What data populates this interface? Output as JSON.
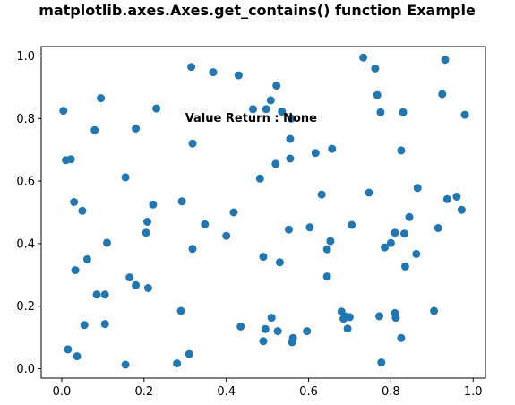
{
  "chart_data": {
    "type": "scatter",
    "title": "matplotlib.axes.Axes.get_contains() function Example",
    "xlabel": "",
    "ylabel": "",
    "xlim": [
      -0.05,
      1.03
    ],
    "ylim": [
      -0.03,
      1.03
    ],
    "grid": false,
    "legend": "none",
    "marker_color": "#1f77b4",
    "xticks": [
      0.0,
      0.2,
      0.4,
      0.6,
      0.8,
      1.0
    ],
    "xtick_labels": [
      "0.0",
      "0.2",
      "0.4",
      "0.6",
      "0.8",
      "1.0"
    ],
    "yticks": [
      0.0,
      0.2,
      0.4,
      0.6,
      0.8,
      1.0
    ],
    "ytick_labels": [
      "0.0",
      "0.2",
      "0.4",
      "0.6",
      "0.8",
      "1.0"
    ],
    "annotation": {
      "text": "Value Return : None",
      "x": 0.3,
      "y": 0.79
    },
    "points": [
      [
        0.004,
        0.825
      ],
      [
        0.01,
        0.667
      ],
      [
        0.022,
        0.67
      ],
      [
        0.015,
        0.062
      ],
      [
        0.03,
        0.533
      ],
      [
        0.033,
        0.315
      ],
      [
        0.037,
        0.04
      ],
      [
        0.05,
        0.505
      ],
      [
        0.055,
        0.14
      ],
      [
        0.062,
        0.35
      ],
      [
        0.08,
        0.763
      ],
      [
        0.085,
        0.237
      ],
      [
        0.095,
        0.865
      ],
      [
        0.105,
        0.237
      ],
      [
        0.105,
        0.143
      ],
      [
        0.11,
        0.403
      ],
      [
        0.155,
        0.612
      ],
      [
        0.155,
        0.013
      ],
      [
        0.165,
        0.292
      ],
      [
        0.18,
        0.768
      ],
      [
        0.18,
        0.267
      ],
      [
        0.205,
        0.435
      ],
      [
        0.208,
        0.47
      ],
      [
        0.21,
        0.258
      ],
      [
        0.222,
        0.525
      ],
      [
        0.23,
        0.832
      ],
      [
        0.28,
        0.017
      ],
      [
        0.29,
        0.185
      ],
      [
        0.292,
        0.535
      ],
      [
        0.31,
        0.047
      ],
      [
        0.315,
        0.965
      ],
      [
        0.318,
        0.72
      ],
      [
        0.318,
        0.383
      ],
      [
        0.348,
        0.462
      ],
      [
        0.368,
        0.948
      ],
      [
        0.4,
        0.425
      ],
      [
        0.418,
        0.5
      ],
      [
        0.43,
        0.938
      ],
      [
        0.435,
        0.135
      ],
      [
        0.465,
        0.83
      ],
      [
        0.482,
        0.608
      ],
      [
        0.49,
        0.358
      ],
      [
        0.49,
        0.088
      ],
      [
        0.495,
        0.127
      ],
      [
        0.497,
        0.83
      ],
      [
        0.508,
        0.858
      ],
      [
        0.51,
        0.163
      ],
      [
        0.52,
        0.655
      ],
      [
        0.522,
        0.905
      ],
      [
        0.525,
        0.12
      ],
      [
        0.53,
        0.34
      ],
      [
        0.535,
        0.822
      ],
      [
        0.552,
        0.445
      ],
      [
        0.555,
        0.672
      ],
      [
        0.555,
        0.735
      ],
      [
        0.558,
        0.8
      ],
      [
        0.56,
        0.085
      ],
      [
        0.562,
        0.098
      ],
      [
        0.596,
        0.12
      ],
      [
        0.603,
        0.452
      ],
      [
        0.617,
        0.69
      ],
      [
        0.632,
        0.557
      ],
      [
        0.645,
        0.382
      ],
      [
        0.645,
        0.295
      ],
      [
        0.653,
        0.408
      ],
      [
        0.657,
        0.703
      ],
      [
        0.68,
        0.183
      ],
      [
        0.685,
        0.16
      ],
      [
        0.69,
        0.167
      ],
      [
        0.695,
        0.128
      ],
      [
        0.7,
        0.165
      ],
      [
        0.705,
        0.46
      ],
      [
        0.733,
        0.995
      ],
      [
        0.747,
        0.563
      ],
      [
        0.762,
        0.96
      ],
      [
        0.767,
        0.875
      ],
      [
        0.772,
        0.168
      ],
      [
        0.775,
        0.82
      ],
      [
        0.777,
        0.02
      ],
      [
        0.785,
        0.388
      ],
      [
        0.8,
        0.402
      ],
      [
        0.81,
        0.435
      ],
      [
        0.81,
        0.178
      ],
      [
        0.812,
        0.163
      ],
      [
        0.825,
        0.698
      ],
      [
        0.825,
        0.098
      ],
      [
        0.83,
        0.82
      ],
      [
        0.833,
        0.432
      ],
      [
        0.835,
        0.327
      ],
      [
        0.845,
        0.485
      ],
      [
        0.862,
        0.367
      ],
      [
        0.865,
        0.578
      ],
      [
        0.915,
        0.45
      ],
      [
        0.905,
        0.185
      ],
      [
        0.925,
        0.878
      ],
      [
        0.932,
        0.988
      ],
      [
        0.937,
        0.542
      ],
      [
        0.96,
        0.55
      ],
      [
        0.972,
        0.508
      ],
      [
        0.98,
        0.812
      ]
    ]
  }
}
